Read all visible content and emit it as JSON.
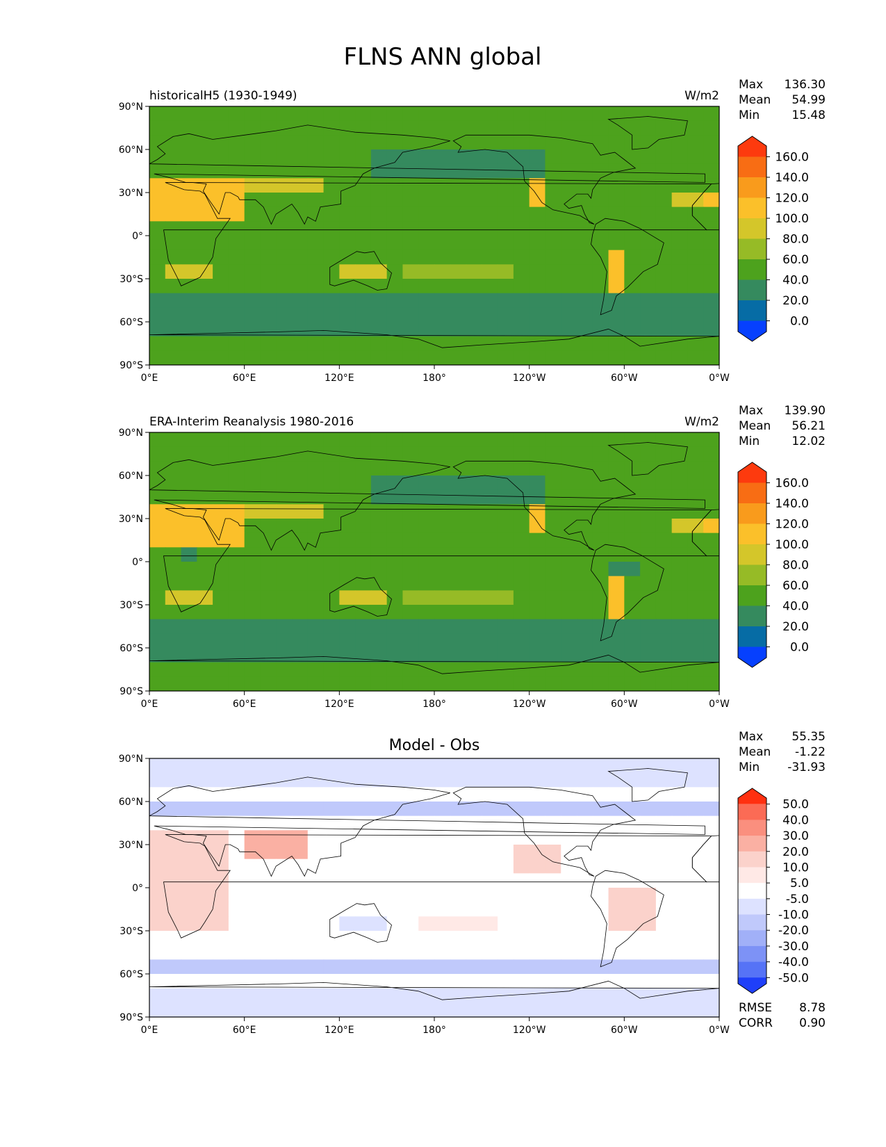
{
  "figure": {
    "title": "FLNS ANN global"
  },
  "axes": {
    "lat_ticks": [
      "90°N",
      "60°N",
      "30°N",
      "0°",
      "30°S",
      "60°S",
      "90°S"
    ],
    "lon_ticks": [
      "0°E",
      "60°E",
      "120°E",
      "180°",
      "120°W",
      "60°W",
      "0°W"
    ]
  },
  "panels": [
    {
      "id": "model",
      "left_title": "historicalH5 (1930-1949)",
      "center_title": "",
      "units": "W/m2",
      "stats": {
        "labels": [
          "Max",
          "Mean",
          "Min"
        ],
        "values": [
          "136.30",
          "54.99",
          "15.48"
        ]
      },
      "colorbar": {
        "labels": [
          "160.0",
          "140.0",
          "120.0",
          "100.0",
          "80.0",
          "60.0",
          "40.0",
          "20.0",
          "0.0"
        ],
        "colors": [
          "#fd3a0e",
          "#f86d14",
          "#f99b1c",
          "#fbc02a",
          "#d4c62a",
          "#96bb26",
          "#4da21d",
          "#358a5e",
          "#066ca5",
          "#0640fe"
        ]
      }
    },
    {
      "id": "obs",
      "left_title": "ERA-Interim Reanalysis 1980-2016",
      "center_title": "",
      "units": "W/m2",
      "stats": {
        "labels": [
          "Max",
          "Mean",
          "Min"
        ],
        "values": [
          "139.90",
          "56.21",
          "12.02"
        ]
      },
      "colorbar": {
        "labels": [
          "160.0",
          "140.0",
          "120.0",
          "100.0",
          "80.0",
          "60.0",
          "40.0",
          "20.0",
          "0.0"
        ],
        "colors": [
          "#fd3a0e",
          "#f86d14",
          "#f99b1c",
          "#fbc02a",
          "#d4c62a",
          "#96bb26",
          "#4da21d",
          "#358a5e",
          "#066ca5",
          "#0640fe"
        ]
      }
    },
    {
      "id": "diff",
      "left_title": "",
      "center_title": "Model - Obs",
      "units": "",
      "stats": {
        "labels": [
          "Max",
          "Mean",
          "Min"
        ],
        "values": [
          "55.35",
          "-1.22",
          "-31.93"
        ]
      },
      "colorbar": {
        "labels": [
          "50.0",
          "40.0",
          "30.0",
          "20.0",
          "10.0",
          "5.0",
          "-5.0",
          "-10.0",
          "-20.0",
          "-30.0",
          "-40.0",
          "-50.0"
        ],
        "colors": [
          "#ff3010",
          "#fb6b55",
          "#fa8f7e",
          "#fab0a3",
          "#fbd2cb",
          "#ffe9e6",
          "#ffffff",
          "#dde2ff",
          "#c0c9fb",
          "#a1b0f8",
          "#7d92f6",
          "#5673f6",
          "#1f3ff9"
        ]
      },
      "metrics": {
        "labels": [
          "RMSE",
          "CORR"
        ],
        "values": [
          "8.78",
          "0.90"
        ]
      }
    }
  ]
}
